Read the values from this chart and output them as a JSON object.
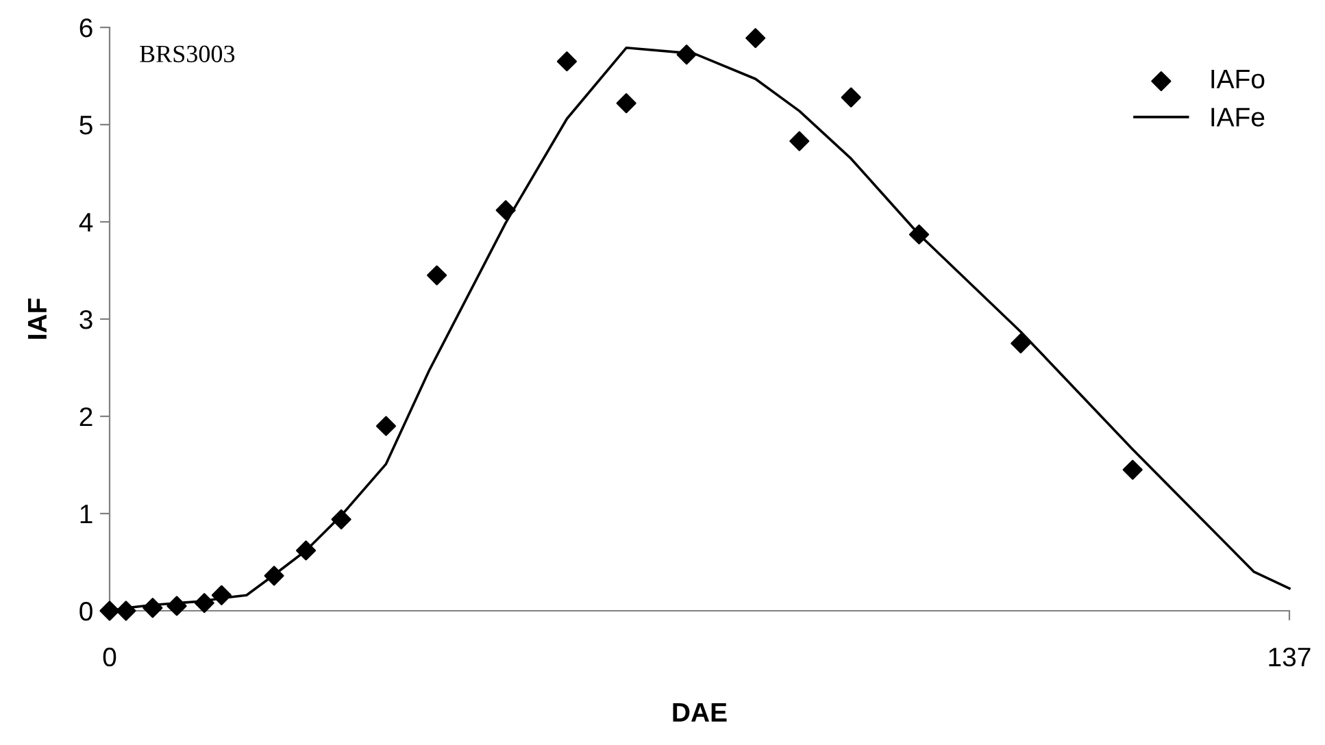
{
  "chart_data": {
    "type": "scatter",
    "xlabel": "DAE",
    "ylabel": "IAF",
    "annotations": [
      "BRS3003"
    ],
    "xlim": [
      0,
      137
    ],
    "xticks": [
      0,
      137
    ],
    "ylim": [
      0,
      6
    ],
    "yticks": [
      0,
      1,
      2,
      3,
      4,
      5,
      6
    ],
    "grid": false,
    "legend": "top right",
    "series": [
      {
        "name": "IAFo",
        "marker": "diamond",
        "color": "#000000",
        "x": [
          0,
          1.9,
          5.0,
          7.8,
          11.0,
          13.0,
          19.1,
          22.8,
          26.9,
          32.1,
          38.0,
          46.0,
          53.1,
          60.0,
          67.0,
          75.0,
          80.1,
          86.1,
          94.0,
          105.8,
          118.8
        ],
        "values": [
          0,
          0,
          0.03,
          0.05,
          0.08,
          0.16,
          0.36,
          0.62,
          0.94,
          1.9,
          3.45,
          4.12,
          5.65,
          5.22,
          5.72,
          5.89,
          4.83,
          5.28,
          3.87,
          2.75,
          1.45
        ]
      },
      {
        "name": "IAFe",
        "type": "line",
        "marker": "none",
        "line_style": "solid",
        "color": "#000000",
        "x": [
          0,
          2,
          5,
          8,
          11,
          13,
          15.9,
          19.1,
          22.8,
          26.9,
          32.1,
          37.1,
          46.0,
          53.1,
          60.0,
          67.9,
          75.0,
          80.1,
          86.1,
          94.0,
          105.8,
          118.8,
          132.9,
          137
        ],
        "values": [
          0,
          0.03,
          0.06,
          0.08,
          0.1,
          0.13,
          0.16,
          0.37,
          0.62,
          0.98,
          1.51,
          2.47,
          3.99,
          5.06,
          5.79,
          5.73,
          5.47,
          5.14,
          4.65,
          3.87,
          2.87,
          1.66,
          0.4,
          0.23
        ]
      }
    ]
  }
}
